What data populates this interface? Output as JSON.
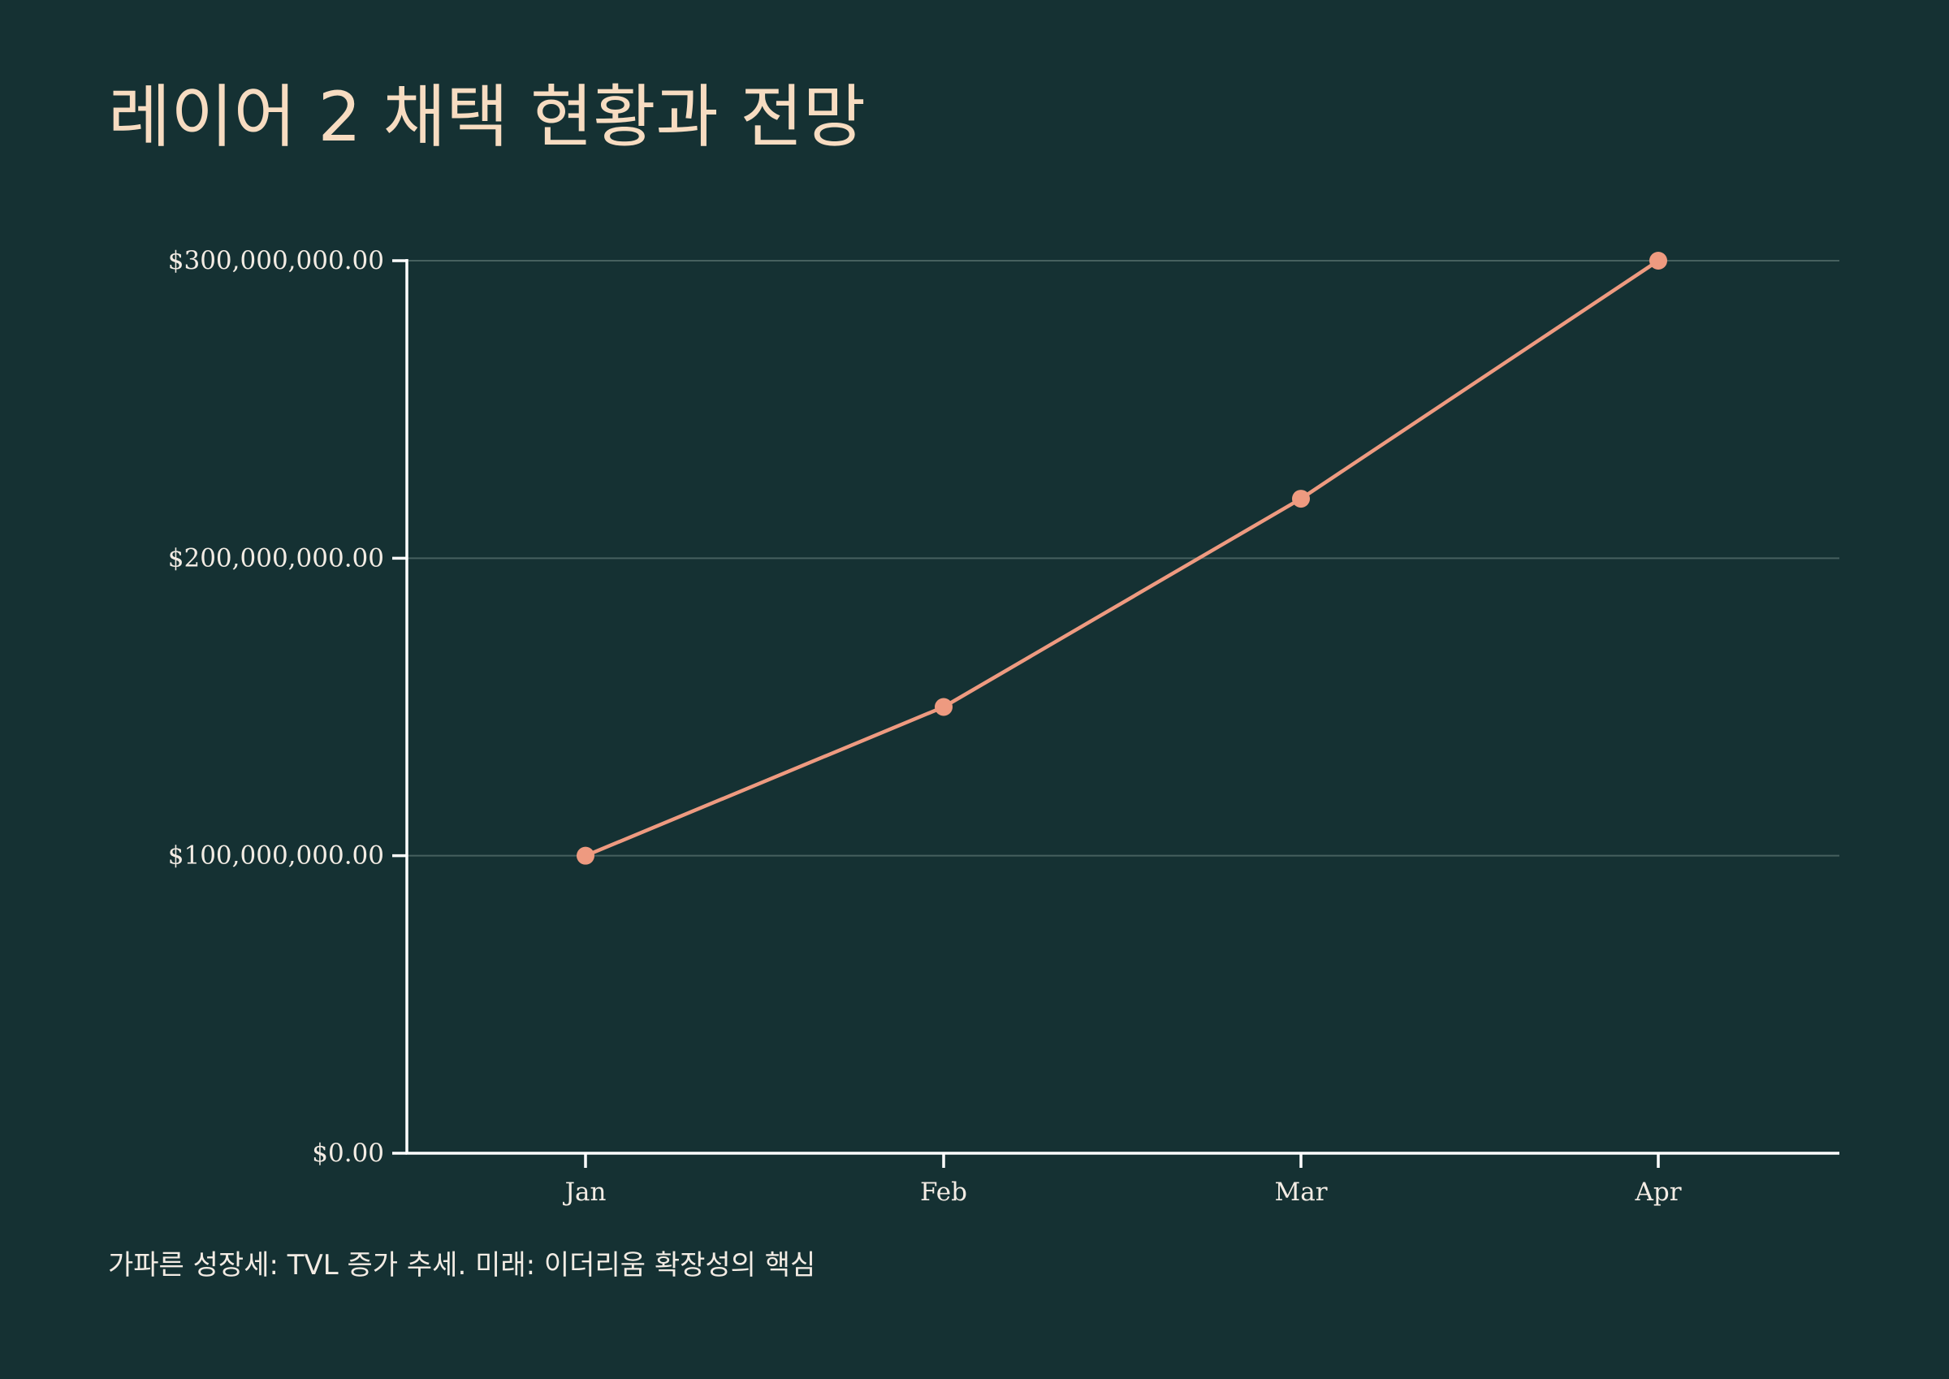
{
  "title": "레이어 2 채택 현황과 전망",
  "caption": "가파른 성장세: TVL 증가 추세. 미래: 이더리움 확장성의 핵심",
  "colors": {
    "background": "#153133",
    "title": "#f7dcc1",
    "line": "#ee9a80",
    "axis": "#ffffff",
    "grid": "#46605f",
    "text": "#f3ece4"
  },
  "chart_data": {
    "type": "line",
    "title": "레이어 2 채택 현황과 전망",
    "xlabel": "",
    "ylabel": "",
    "categories": [
      "Jan",
      "Feb",
      "Mar",
      "Apr"
    ],
    "series": [
      {
        "values": [
          100000000,
          150000000,
          220000000,
          300000000
        ]
      }
    ],
    "ylim": [
      0,
      300000000
    ],
    "yticks": [
      0,
      100000000,
      200000000,
      300000000
    ],
    "ytick_labels": [
      "$0.00",
      "$100,000,000.00",
      "$200,000,000.00",
      "$300,000,000.00"
    ],
    "grid": "horizontal",
    "markers": true,
    "legend": "none"
  }
}
